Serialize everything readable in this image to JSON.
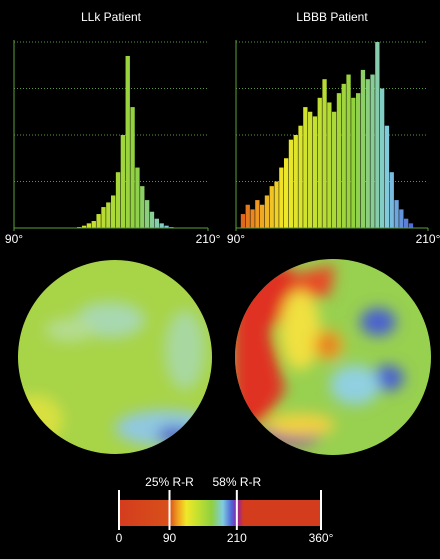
{
  "chart_data": [
    {
      "type": "histogram",
      "title": "LLk Patient",
      "bins": [
        90,
        93,
        96,
        99,
        102,
        105,
        108,
        111,
        114,
        117,
        120,
        123,
        126,
        129,
        132,
        135,
        138,
        141,
        144,
        147,
        150,
        153,
        156,
        159,
        162,
        165,
        168,
        171,
        174,
        177,
        180,
        183,
        186,
        189,
        192,
        195,
        198,
        201,
        204,
        207,
        210
      ],
      "values": [
        0,
        0,
        0,
        0,
        0,
        0,
        0,
        0,
        0,
        0,
        0,
        0,
        0,
        0.02,
        0.05,
        0.1,
        0.15,
        0.3,
        0.45,
        0.55,
        0.7,
        1.2,
        2.0,
        3.7,
        2.6,
        1.3,
        0.9,
        0.6,
        0.35,
        0.2,
        0.1,
        0.05,
        0.02,
        0,
        0,
        0,
        0,
        0,
        0,
        0
      ],
      "xlim": [
        90,
        210
      ],
      "xticks": [
        {
          "value": 90,
          "label": "90°"
        },
        {
          "value": 210,
          "label": "210°"
        }
      ],
      "ylim": [
        0,
        4
      ],
      "yticks": [
        1,
        2,
        3,
        4
      ],
      "grid": true
    },
    {
      "type": "histogram",
      "title": "LBBB Patient",
      "bins": [
        90,
        93,
        96,
        99,
        102,
        105,
        108,
        111,
        114,
        117,
        120,
        123,
        126,
        129,
        132,
        135,
        138,
        141,
        144,
        147,
        150,
        153,
        156,
        159,
        162,
        165,
        168,
        171,
        174,
        177,
        180,
        183,
        186,
        189,
        192,
        195,
        198,
        201,
        204,
        207,
        210
      ],
      "values": [
        0,
        0.3,
        0.5,
        0.4,
        0.6,
        0.5,
        0.7,
        0.9,
        1.0,
        1.3,
        1.5,
        1.9,
        2.0,
        2.2,
        2.6,
        2.5,
        2.4,
        2.8,
        3.2,
        2.7,
        2.5,
        2.9,
        3.1,
        3.3,
        2.8,
        2.9,
        3.4,
        3.2,
        3.3,
        4.0,
        3.0,
        2.2,
        1.2,
        0.6,
        0.4,
        0.2,
        0.1,
        0,
        0,
        0
      ],
      "xlim": [
        90,
        210
      ],
      "xticks": [
        {
          "value": 90,
          "label": "90°"
        },
        {
          "value": 210,
          "label": "210°"
        }
      ],
      "ylim": [
        0,
        4
      ],
      "yticks": [
        1,
        2,
        3,
        4
      ],
      "grid": true
    },
    {
      "type": "colorbar",
      "xlim": [
        0,
        360
      ],
      "xticks": [
        0,
        90,
        210,
        {
          "value": 360,
          "label": "360°"
        }
      ],
      "stops": [
        {
          "value": 0,
          "color": "#d43c1e"
        },
        {
          "value": 90,
          "color": "#d8501a"
        },
        {
          "value": 105,
          "color": "#f0a020"
        },
        {
          "value": 120,
          "color": "#f0e828"
        },
        {
          "value": 140,
          "color": "#c4e030"
        },
        {
          "value": 165,
          "color": "#90d040"
        },
        {
          "value": 185,
          "color": "#80cce0"
        },
        {
          "value": 200,
          "color": "#5068d8"
        },
        {
          "value": 210,
          "color": "#9020a8"
        },
        {
          "value": 222,
          "color": "#d43c1e"
        },
        {
          "value": 360,
          "color": "#d43c1e"
        }
      ],
      "annotations": [
        {
          "text": "25% R-R",
          "x": 90
        },
        {
          "text": "58% R-R",
          "x": 210
        }
      ]
    }
  ]
}
